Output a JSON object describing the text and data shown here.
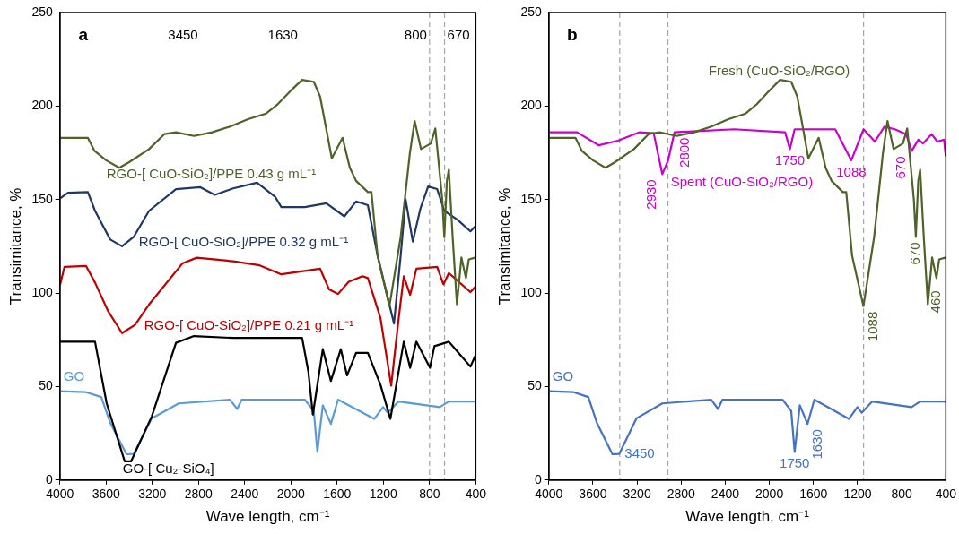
{
  "chart_data": [
    {
      "type": "line",
      "xlabel": "Wave length, cm⁻¹",
      "ylabel": "Transimitance, %",
      "xlim": [
        4000,
        400
      ],
      "xticks": [
        4000,
        3600,
        3200,
        2800,
        2400,
        2000,
        1600,
        1200,
        800,
        400
      ],
      "ylim": [
        0,
        250
      ],
      "yticks": [
        0,
        50,
        100,
        150,
        200,
        250
      ],
      "series": [
        {
          "name": "RGO-[ CuO-SiO₂]/PPE 0.43 g mL⁻¹",
          "color": "#4f6228",
          "x": [
            4000,
            3758,
            3700,
            3600,
            3486,
            3400,
            3228,
            3096,
            2995,
            2839,
            2683,
            2527,
            2371,
            2215,
            2114,
            2005,
            1903,
            1802,
            1747,
            1646,
            1553,
            1490,
            1436,
            1334,
            1303,
            1250,
            1147,
            1050,
            970,
            929,
            874,
            789,
            750,
            690,
            672,
            650,
            633,
            600,
            563,
            524,
            485,
            460,
            400
          ],
          "values": [
            183,
            183,
            176,
            171,
            167,
            170,
            177,
            185,
            186,
            184,
            186,
            189,
            193,
            196,
            201,
            208,
            214,
            213,
            205,
            172,
            183,
            167,
            160,
            154,
            154,
            120,
            93,
            130,
            175,
            192,
            177,
            180,
            188,
            150,
            130,
            160,
            166,
            130,
            94,
            119,
            108,
            118,
            119
          ]
        },
        {
          "name": "RGO-[ CuO-SiO₂]/PPE 0.32 g mL⁻¹",
          "color": "#1f3864",
          "x": [
            4000,
            3930,
            3758,
            3696,
            3564,
            3462,
            3361,
            3228,
            2995,
            2784,
            2659,
            2500,
            2293,
            2137,
            2083,
            1880,
            1693,
            1537,
            1436,
            1334,
            1250,
            1108,
            1050,
            1007,
            945,
            880,
            812,
            734,
            672,
            555,
            446,
            400
          ],
          "values": [
            150.5,
            153.6,
            154,
            144,
            128.6,
            125,
            130,
            144,
            155.6,
            156.6,
            152.5,
            156,
            159,
            151.5,
            146,
            146,
            148,
            141,
            149,
            147,
            120,
            83.7,
            120,
            150,
            127.5,
            145,
            157,
            155.6,
            144,
            139,
            133,
            136
          ]
        },
        {
          "name": "RGO-[ CuO-SiO₂]/PPE 0.21 g mL⁻¹",
          "color": "#c00000",
          "x": [
            4000,
            3960,
            3774,
            3696,
            3580,
            3462,
            3350,
            3228,
            2940,
            2815,
            2500,
            2270,
            2083,
            1747,
            1670,
            1592,
            1500,
            1381,
            1334,
            1225,
            1132,
            1070,
            1023,
            968,
            914,
            734,
            680,
            633,
            446,
            400
          ],
          "values": [
            104,
            114,
            114.5,
            105.6,
            90,
            78.6,
            83,
            93.9,
            115.8,
            118.9,
            117,
            114.8,
            110,
            113,
            102,
            99.5,
            106,
            109,
            108,
            86.7,
            50.5,
            85,
            109,
            99,
            113,
            114,
            104.6,
            110.7,
            100.5,
            103.6
          ]
        },
        {
          "name": "GO-[ Cu₂-SiO₄]",
          "color": "#000000",
          "x": [
            4000,
            3696,
            3595,
            3439,
            3384,
            3205,
            2995,
            2839,
            2500,
            1903,
            1849,
            1810,
            1724,
            1654,
            1568,
            1514,
            1436,
            1334,
            1225,
            1139,
            1023,
            968,
            914,
            796,
            758,
            633,
            446,
            400
          ],
          "values": [
            74,
            74,
            41,
            10,
            10,
            34,
            73.4,
            77,
            76,
            76,
            58,
            35,
            70,
            53,
            70,
            56,
            68,
            68,
            51,
            32.7,
            74,
            60,
            74,
            60,
            71.6,
            74,
            60.7,
            67
          ]
        },
        {
          "name": "GO",
          "color": "#5b9bd5",
          "x": [
            4000,
            3774,
            3642,
            3564,
            3423,
            3361,
            3205,
            2971,
            2527,
            2465,
            2426,
            1880,
            1802,
            1771,
            1724,
            1654,
            1592,
            1279,
            1202,
            1163,
            1069,
            711,
            633,
            400
          ],
          "values": [
            47.5,
            47,
            44.4,
            30.6,
            13.8,
            14,
            33,
            41,
            43,
            38,
            43,
            43,
            37,
            15,
            40,
            30,
            43,
            32.7,
            39,
            36,
            42,
            39,
            42,
            42
          ]
        }
      ],
      "ref_lines": [
        {
          "axis": "x",
          "value": 800,
          "label": "800",
          "color": "#a6a6a6",
          "line_style": "dashed"
        },
        {
          "axis": "x",
          "value": 670,
          "label": "670",
          "color": "#a6a6a6",
          "line_style": "dashed"
        }
      ],
      "annotations": [
        "a",
        "3450",
        "1630"
      ]
    },
    {
      "type": "line",
      "xlabel": "Wave length, cm⁻¹",
      "ylabel": "Transimitance, %",
      "xlim": [
        4000,
        400
      ],
      "xticks": [
        4000,
        3600,
        3200,
        2800,
        2400,
        2000,
        1600,
        1200,
        800,
        400
      ],
      "ylim": [
        0,
        250
      ],
      "yticks": [
        0,
        50,
        100,
        150,
        200,
        250
      ],
      "series": [
        {
          "name": "Fresh (CuO-SiO₂/RGO)",
          "color": "#4f6228",
          "x": [
            4000,
            3758,
            3700,
            3600,
            3486,
            3400,
            3228,
            3096,
            2995,
            2839,
            2683,
            2527,
            2371,
            2215,
            2114,
            2005,
            1903,
            1802,
            1747,
            1646,
            1553,
            1490,
            1436,
            1334,
            1303,
            1250,
            1147,
            1050,
            970,
            929,
            874,
            789,
            750,
            690,
            672,
            650,
            633,
            600,
            563,
            524,
            485,
            460,
            400
          ],
          "values": [
            183,
            183,
            176,
            171,
            167,
            170,
            177,
            185,
            186,
            184,
            186,
            189,
            193,
            196,
            201,
            208,
            214,
            213,
            205,
            172,
            183,
            167,
            160,
            154,
            154,
            120,
            93,
            130,
            175,
            192,
            177,
            180,
            188,
            150,
            130,
            160,
            166,
            130,
            94,
            119,
            108,
            118,
            119
          ]
        },
        {
          "name": "Spent (CuO-SiO₂/RGO)",
          "color": "#cc00cc",
          "x": [
            4000,
            3743,
            3546,
            3374,
            3177,
            3049,
            2971,
            2920,
            2860,
            2320,
            1857,
            1814,
            1771,
            1403,
            1257,
            1146,
            1043,
            957,
            863,
            760,
            709,
            649,
            606,
            529,
            477,
            417,
            400
          ],
          "values": [
            186,
            186,
            179,
            181.5,
            186,
            185.5,
            163.6,
            170.6,
            186,
            187.6,
            186,
            177,
            187.6,
            187.6,
            171,
            187.6,
            181,
            189,
            187.6,
            185,
            176,
            182,
            180,
            185,
            181,
            182,
            173
          ]
        },
        {
          "name": "GO",
          "color": "#4472c4",
          "x": [
            4000,
            3774,
            3642,
            3564,
            3423,
            3361,
            3205,
            2971,
            2527,
            2465,
            2426,
            1880,
            1802,
            1771,
            1724,
            1654,
            1592,
            1279,
            1202,
            1163,
            1069,
            711,
            633,
            400
          ],
          "values": [
            47.5,
            47,
            44.4,
            30.6,
            13.8,
            14,
            33,
            41,
            43,
            38,
            43,
            43,
            37,
            15,
            40,
            30,
            43,
            32.7,
            39,
            36,
            42,
            39,
            42,
            42
          ]
        }
      ],
      "ref_lines": [
        {
          "axis": "x",
          "value": 3357,
          "color": "#a6a6a6",
          "line_style": "dashed"
        },
        {
          "axis": "x",
          "value": 2920,
          "color": "#a6a6a6",
          "line_style": "dashed"
        },
        {
          "axis": "x",
          "value": 1146,
          "color": "#a6a6a6",
          "line_style": "dashed"
        }
      ],
      "annotations": [
        "b",
        {
          "text": "2930",
          "x": 2971,
          "y": 163.6
        },
        {
          "text": "2800",
          "x": 2860,
          "y": 186
        },
        {
          "text": "1750",
          "x": 1814,
          "y": 177
        },
        {
          "text": "1088",
          "x": 1257,
          "y": 171
        },
        {
          "text": "670",
          "x": 709,
          "y": 176
        },
        {
          "text": "670",
          "x": 672,
          "y": 130
        },
        {
          "text": "1088",
          "x": 1147,
          "y": 93
        },
        {
          "text": "460",
          "x": 485,
          "y": 108
        },
        {
          "text": "3450",
          "x": 3361,
          "y": 14
        },
        {
          "text": "1750",
          "x": 1771,
          "y": 15
        },
        {
          "text": "1630",
          "x": 1654,
          "y": 30
        }
      ]
    }
  ]
}
